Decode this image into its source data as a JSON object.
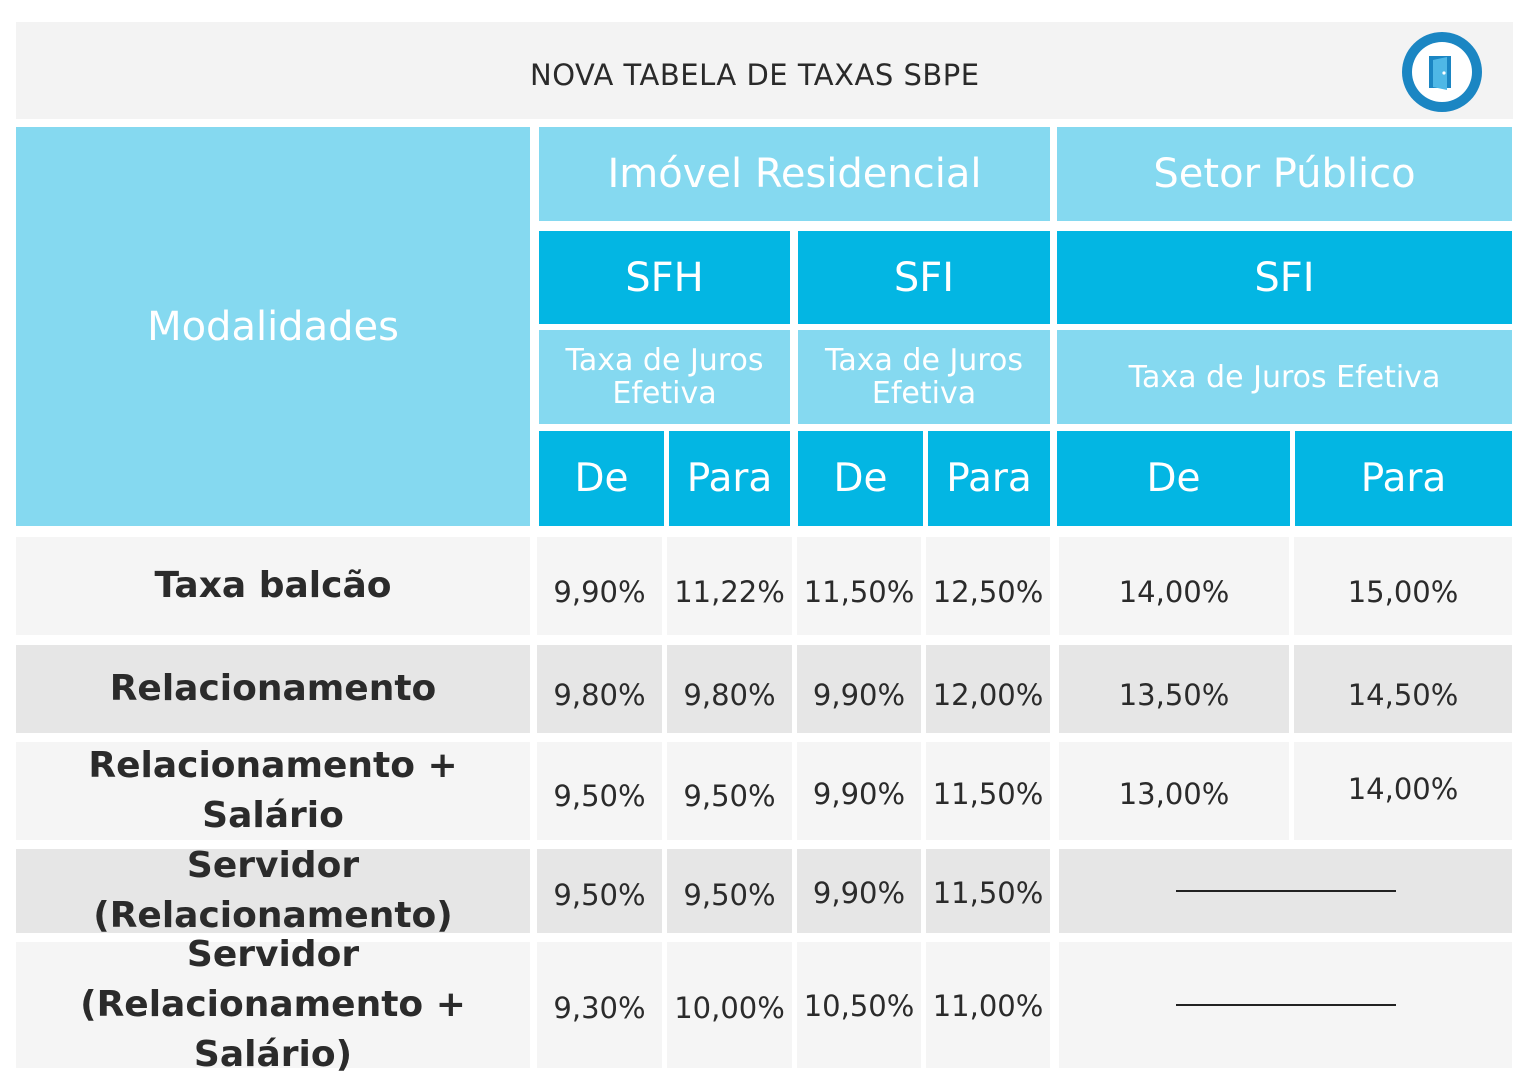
{
  "title": "NOVA TABELA DE TAXAS SBPE",
  "logo_icon": "door-icon",
  "colors": {
    "light_cyan": "#85d9f0",
    "dark_cyan": "#03b6e3",
    "logo_blue": "#1b86c3",
    "row_white": "#f5f5f5",
    "row_gray": "#e6e6e6"
  },
  "header": {
    "modalidades": "Modalidades",
    "imovel_residencial": "Imóvel Residencial",
    "setor_publico": "Setor Público",
    "sfh": "SFH",
    "sfi_1": "SFI",
    "sfi_2": "SFI",
    "taxa_sfh": "Taxa de Juros Efetiva",
    "taxa_sfi_1": "Taxa de Juros Efetiva",
    "taxa_sfi_2": "Taxa de Juros Efetiva",
    "de_1": "De",
    "para_1": "Para",
    "de_2": "De",
    "para_2": "Para",
    "de_3": "De",
    "para_3": "Para"
  },
  "rows": [
    {
      "label": "Taxa balcão",
      "sfh_de": "9,90%",
      "sfh_para": "11,22%",
      "sfi_de": "11,50%",
      "sfi_para": "12,50%",
      "sp_de": "14,00%",
      "sp_para": "15,00%"
    },
    {
      "label": "Relacionamento",
      "sfh_de": "9,80%",
      "sfh_para": "9,80%",
      "sfi_de": "9,90%",
      "sfi_para": "12,00%",
      "sp_de": "13,50%",
      "sp_para": "14,50%"
    },
    {
      "label": "Relacionamento + Salário",
      "sfh_de": "9,50%",
      "sfh_para": "9,50%",
      "sfi_de": "9,90%",
      "sfi_para": "11,50%",
      "sp_de": "13,00%",
      "sp_para": "14,00%"
    },
    {
      "label": "Servidor (Relacionamento)",
      "sfh_de": "9,50%",
      "sfh_para": "9,50%",
      "sfi_de": "9,90%",
      "sfi_para": "11,50%"
    },
    {
      "label": "Servidor\n(Relacionamento + Salário)",
      "sfh_de": "9,30%",
      "sfh_para": "10,00%",
      "sfi_de": "10,50%",
      "sfi_para": "11,00%"
    }
  ]
}
